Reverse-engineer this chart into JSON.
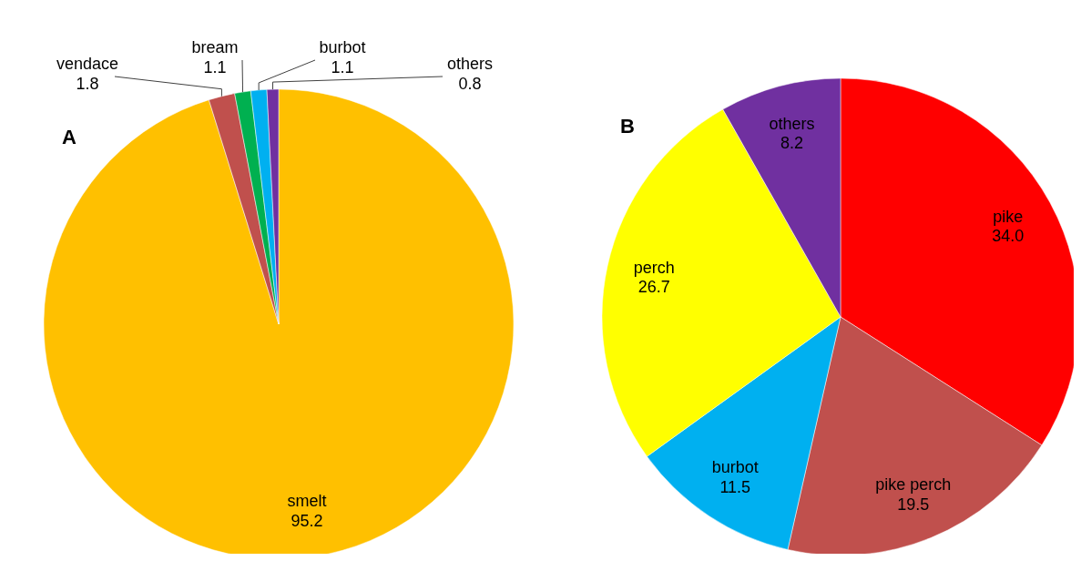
{
  "chart_data": [
    {
      "type": "pie",
      "title": "A",
      "categories": [
        "smelt",
        "vendace",
        "bream",
        "burbot",
        "others"
      ],
      "values": [
        95.2,
        1.8,
        1.1,
        1.1,
        0.8
      ],
      "value_labels": [
        "95.2",
        "1.8",
        "1.1",
        "1.1",
        "0.8"
      ],
      "colors": [
        "#ffc000",
        "#c0504d",
        "#00b050",
        "#00b0f0",
        "#7030a0"
      ]
    },
    {
      "type": "pie",
      "title": "B",
      "categories": [
        "pike",
        "pike perch",
        "burbot",
        "perch",
        "others"
      ],
      "values": [
        34.0,
        19.5,
        11.5,
        26.7,
        8.2
      ],
      "value_labels": [
        "34.0",
        "19.5",
        "11.5",
        "26.7",
        "8.2"
      ],
      "colors": [
        "#ff0000",
        "#c0504d",
        "#00b0f0",
        "#ffff00",
        "#7030a0"
      ]
    }
  ]
}
